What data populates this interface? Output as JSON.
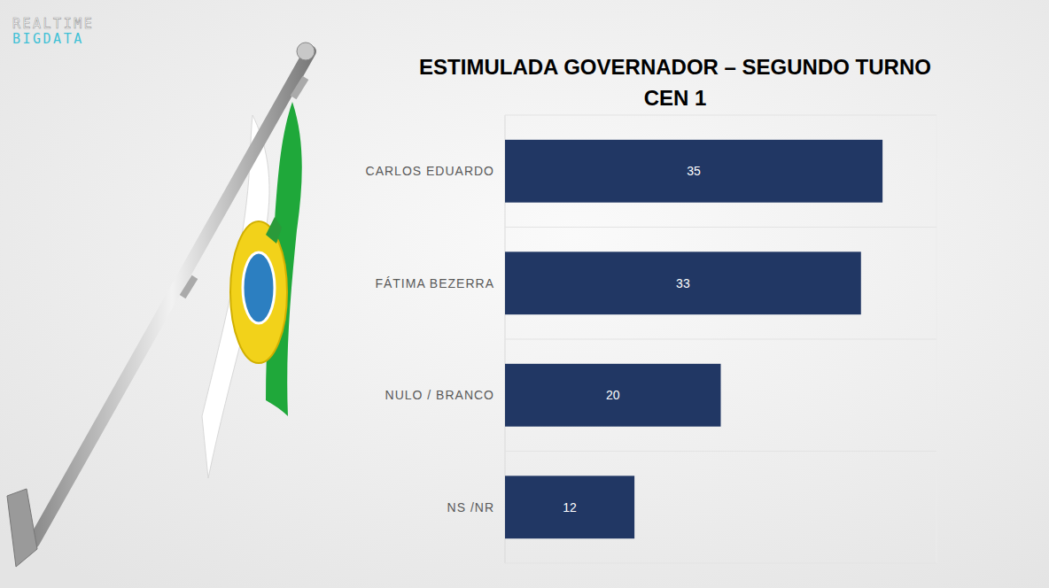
{
  "chart_data": {
    "type": "bar",
    "orientation": "horizontal",
    "title": "ESTIMULADA GOVERNADOR – SEGUNDO TURNO",
    "subtitle": "CEN 1",
    "annotations": [
      "REALTIME",
      "BIGDATA"
    ],
    "categories": [
      "CARLOS EDUARDO",
      "FÁTIMA BEZERRA",
      "NULO / BRANCO",
      "NS /NR"
    ],
    "values": [
      35,
      33,
      20,
      12
    ],
    "color": "#213764",
    "xlim": [
      0,
      40
    ],
    "grid": true,
    "data_labels": true,
    "tick_labels": "y"
  }
}
